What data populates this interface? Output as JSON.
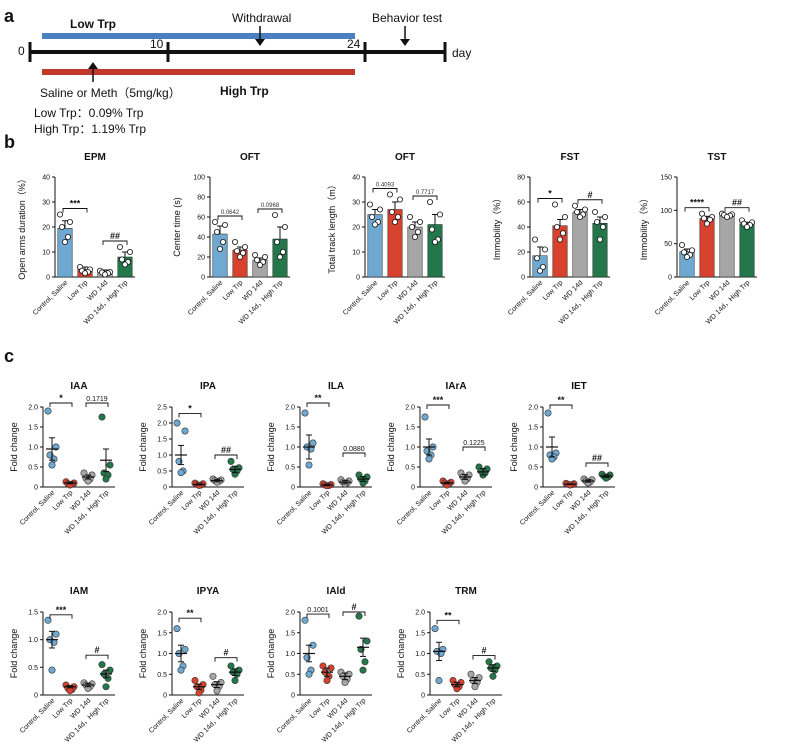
{
  "panel_labels": {
    "a": "a",
    "b": "b",
    "c": "c"
  },
  "colors": {
    "saline": "#6fa8d0",
    "low_trp": "#d9412f",
    "wd": "#a6a6a6",
    "high_trp": "#23774a",
    "low_bar": "#4a7fc1",
    "high_bar": "#c0392b",
    "low_text": "#d03030",
    "high_text": "#1e7a3c"
  },
  "timeline": {
    "low_bar_label": "Low Trp",
    "high_bar_label": "High Trp",
    "tick_labels": [
      "0",
      "10",
      "24"
    ],
    "unit": "day",
    "withdrawal": "Withdrawal",
    "behavior": "Behavior test",
    "treatment": "Saline or Meth（5mg/kg）",
    "low_dose": "Low Trp：0.09% Trp",
    "high_dose": "High Trp：1.19% Trp"
  },
  "chart_data": [
    {
      "id": "epm",
      "type": "bar",
      "title": "EPM",
      "ylabel": "Open arms duration（%）",
      "categories": [
        "Control, Saline",
        "Low Trp",
        "WD 14d",
        "WD 14d，High Trp"
      ],
      "values": [
        19.5,
        3,
        2,
        8
      ],
      "errors": [
        3,
        1,
        0.8,
        2
      ],
      "ylim": [
        0,
        40
      ],
      "ticks": [
        0,
        10,
        20,
        30,
        40
      ],
      "points": [
        [
          25,
          22,
          20,
          16,
          14
        ],
        [
          4,
          3,
          2.5,
          2,
          1.5
        ],
        [
          2.5,
          2,
          1.8,
          1.5,
          1
        ],
        [
          12,
          10,
          7,
          6,
          5
        ]
      ],
      "sig": [
        {
          "from": 0,
          "to": 1,
          "label": "***"
        },
        {
          "from": 2,
          "to": 3,
          "label": "##"
        }
      ]
    },
    {
      "id": "oft_center",
      "type": "bar",
      "title": "OFT",
      "ylabel": "Center time (s)",
      "categories": [
        "Control, Saline",
        "Low Trp",
        "WD 14d",
        "WD 14d，High Trp"
      ],
      "values": [
        43,
        27,
        17,
        38
      ],
      "errors": [
        8,
        3,
        2,
        12
      ],
      "ylim": [
        0,
        100
      ],
      "ticks": [
        0,
        20,
        40,
        60,
        80,
        100
      ],
      "points": [
        [
          55,
          52,
          45,
          35,
          28
        ],
        [
          35,
          30,
          26,
          24,
          20
        ],
        [
          22,
          20,
          17,
          15,
          12
        ],
        [
          62,
          50,
          35,
          25,
          20
        ]
      ],
      "sig": [
        {
          "from": 0,
          "to": 1,
          "label": "0.0642"
        },
        {
          "from": 2,
          "to": 3,
          "label": "0.0968"
        }
      ]
    },
    {
      "id": "oft_track",
      "type": "bar",
      "title": "OFT",
      "ylabel": "Total track length（m）",
      "categories": [
        "Control, Saline",
        "Low Trp",
        "WD 14d",
        "WD 14d，High Trp"
      ],
      "values": [
        25,
        27,
        20,
        21
      ],
      "errors": [
        2,
        3,
        2,
        4
      ],
      "ylim": [
        0,
        40
      ],
      "ticks": [
        0,
        10,
        20,
        30,
        40
      ],
      "points": [
        [
          29,
          27,
          24,
          22,
          21
        ],
        [
          33,
          31,
          26,
          24,
          22
        ],
        [
          24,
          22,
          20,
          18,
          16
        ],
        [
          30,
          25,
          19,
          15,
          14
        ]
      ],
      "sig": [
        {
          "from": 0,
          "to": 1,
          "label": "0.4093"
        },
        {
          "from": 2,
          "to": 3,
          "label": "0.7717"
        }
      ]
    },
    {
      "id": "fst",
      "type": "bar",
      "title": "FST",
      "ylabel": "Immobility（%）",
      "categories": [
        "Control, Saline",
        "Low Trp",
        "WD 14d",
        "WD 14d，High Trp"
      ],
      "values": [
        17,
        41,
        52,
        43
      ],
      "errors": [
        7,
        5,
        2,
        5
      ],
      "ylim": [
        0,
        80
      ],
      "ticks": [
        0,
        20,
        40,
        60,
        80
      ],
      "points": [
        [
          30,
          22,
          15,
          8,
          5
        ],
        [
          58,
          48,
          40,
          35,
          30
        ],
        [
          57,
          54,
          52,
          50,
          48
        ],
        [
          52,
          48,
          44,
          40,
          30
        ]
      ],
      "sig": [
        {
          "from": 0,
          "to": 1,
          "label": "*"
        },
        {
          "from": 2,
          "to": 3,
          "label": "#"
        }
      ]
    },
    {
      "id": "tst",
      "type": "bar",
      "title": "TST",
      "ylabel": "Immobility（%）",
      "categories": [
        "Control, Saline",
        "Low Trp",
        "WD 14d",
        "WD 14d，High Trp"
      ],
      "values": [
        38,
        88,
        93,
        80
      ],
      "errors": [
        4,
        3,
        1,
        2
      ],
      "ylim": [
        0,
        150
      ],
      "ticks": [
        0,
        50,
        100,
        150
      ],
      "points": [
        [
          48,
          40,
          37,
          33,
          30
        ],
        [
          95,
          90,
          88,
          86,
          80
        ],
        [
          95,
          94,
          93,
          92,
          90
        ],
        [
          85,
          82,
          80,
          78,
          75
        ]
      ],
      "sig": [
        {
          "from": 0,
          "to": 1,
          "label": "****"
        },
        {
          "from": 2,
          "to": 3,
          "label": "##"
        }
      ]
    },
    {
      "id": "iaa",
      "type": "scatter",
      "title": "IAA",
      "ylabel": "Fold change",
      "categories": [
        "Control, Saline",
        "Low Trp",
        "WD 14d",
        "WD 14d，High Trp"
      ],
      "means": [
        0.95,
        0.1,
        0.25,
        0.67
      ],
      "errors": [
        0.28,
        0.02,
        0.05,
        0.28
      ],
      "ylim": [
        0,
        2.0
      ],
      "ticks": [
        0,
        0.5,
        1.0,
        1.5,
        2.0
      ],
      "points": [
        [
          1.9,
          1.0,
          0.8,
          0.7,
          0.55
        ],
        [
          0.13,
          0.1,
          0.08,
          0.07,
          0.05
        ],
        [
          0.35,
          0.3,
          0.22,
          0.2,
          0.15
        ],
        [
          1.75,
          0.55,
          0.35,
          0.3,
          0.2
        ]
      ],
      "sig": [
        {
          "from": 0,
          "to": 1,
          "label": "*",
          "y": 2.1
        },
        {
          "from": 2,
          "to": 3,
          "label": "0.1719",
          "y": 2.1
        }
      ]
    },
    {
      "id": "ipa",
      "type": "scatter",
      "title": "IPA",
      "ylabel": "Fold change",
      "categories": [
        "Control, Saline",
        "Low Trp",
        "WD 14d",
        "WD 14d，High Trp"
      ],
      "means": [
        1.0,
        0.08,
        0.2,
        0.55
      ],
      "errors": [
        0.3,
        0.02,
        0.04,
        0.1
      ],
      "ylim": [
        0,
        2.5
      ],
      "ticks": [
        0,
        0.5,
        1.0,
        1.5,
        2.0,
        2.5
      ],
      "points": [
        [
          2.0,
          1.75,
          0.8,
          0.5,
          0.45
        ],
        [
          0.12,
          0.1,
          0.08,
          0.06,
          0.05
        ],
        [
          0.25,
          0.22,
          0.2,
          0.18,
          0.15
        ],
        [
          0.8,
          0.6,
          0.55,
          0.5,
          0.4
        ]
      ],
      "sig": [
        {
          "from": 0,
          "to": 1,
          "label": "*",
          "y": 2.3
        },
        {
          "from": 2,
          "to": 3,
          "label": "##",
          "y": 1.0
        }
      ]
    },
    {
      "id": "ila",
      "type": "scatter",
      "title": "ILA",
      "ylabel": "Fold change",
      "categories": [
        "Control, Saline",
        "Low Trp",
        "WD 14d",
        "WD 14d，High Trp"
      ],
      "means": [
        1.0,
        0.05,
        0.12,
        0.2
      ],
      "errors": [
        0.3,
        0.02,
        0.04,
        0.06
      ],
      "ylim": [
        0,
        2.0
      ],
      "ticks": [
        0,
        0.5,
        1.0,
        1.5,
        2.0
      ],
      "points": [
        [
          1.85,
          1.1,
          1.0,
          0.95,
          0.55
        ],
        [
          0.08,
          0.06,
          0.05,
          0.04,
          0.03
        ],
        [
          0.18,
          0.15,
          0.12,
          0.1,
          0.08
        ],
        [
          0.3,
          0.25,
          0.2,
          0.15,
          0.1
        ]
      ],
      "sig": [
        {
          "from": 0,
          "to": 1,
          "label": "**",
          "y": 2.1
        },
        {
          "from": 2,
          "to": 3,
          "label": "0.0880",
          "y": 0.85
        }
      ]
    },
    {
      "id": "iara",
      "type": "scatter",
      "title": "IArA",
      "ylabel": "Fold change",
      "categories": [
        "Control, Saline",
        "Low Trp",
        "WD 14d",
        "WD 14d，High Trp"
      ],
      "means": [
        1.0,
        0.1,
        0.25,
        0.38
      ],
      "errors": [
        0.2,
        0.02,
        0.06,
        0.08
      ],
      "ylim": [
        0,
        2.0
      ],
      "ticks": [
        0,
        0.5,
        1.0,
        1.5,
        2.0
      ],
      "points": [
        [
          1.75,
          1.0,
          0.9,
          0.8,
          0.7
        ],
        [
          0.15,
          0.12,
          0.1,
          0.08,
          0.05
        ],
        [
          0.35,
          0.3,
          0.25,
          0.2,
          0.15
        ],
        [
          0.5,
          0.45,
          0.4,
          0.35,
          0.3
        ]
      ],
      "sig": [
        {
          "from": 0,
          "to": 1,
          "label": "***",
          "y": 2.05
        },
        {
          "from": 2,
          "to": 3,
          "label": "0.1225",
          "y": 1.0
        }
      ]
    },
    {
      "id": "iet",
      "type": "scatter",
      "title": "IET",
      "ylabel": "Fold change",
      "categories": [
        "Control, Saline",
        "Low Trp",
        "WD 14d",
        "WD 14d，High Trp"
      ],
      "means": [
        1.0,
        0.07,
        0.15,
        0.27
      ],
      "errors": [
        0.25,
        0.01,
        0.03,
        0.03
      ],
      "ylim": [
        0,
        2.0
      ],
      "ticks": [
        0,
        0.5,
        1.0,
        1.5,
        2.0
      ],
      "points": [
        [
          1.85,
          0.85,
          0.8,
          0.75,
          0.7
        ],
        [
          0.09,
          0.08,
          0.07,
          0.06,
          0.05
        ],
        [
          0.2,
          0.18,
          0.15,
          0.12,
          0.1
        ],
        [
          0.32,
          0.3,
          0.27,
          0.25,
          0.22
        ]
      ],
      "sig": [
        {
          "from": 0,
          "to": 1,
          "label": "**",
          "y": 2.05
        },
        {
          "from": 2,
          "to": 3,
          "label": "##",
          "y": 0.6
        }
      ]
    },
    {
      "id": "iam",
      "type": "scatter",
      "title": "IAM",
      "ylabel": "Fold change",
      "categories": [
        "Control, Saline",
        "Low Trp",
        "WD 14d",
        "WD 14d，High Trp"
      ],
      "means": [
        1.0,
        0.15,
        0.18,
        0.38
      ],
      "errors": [
        0.15,
        0.02,
        0.03,
        0.07
      ],
      "ylim": [
        0,
        1.5
      ],
      "ticks": [
        0,
        0.5,
        1.0,
        1.5
      ],
      "points": [
        [
          1.35,
          1.1,
          1.0,
          0.95,
          0.45
        ],
        [
          0.18,
          0.15,
          0.12,
          0.1,
          0.08
        ],
        [
          0.22,
          0.2,
          0.18,
          0.15,
          0.12
        ],
        [
          0.55,
          0.45,
          0.38,
          0.3,
          0.15
        ]
      ],
      "sig": [
        {
          "from": 0,
          "to": 1,
          "label": "***",
          "y": 1.45
        },
        {
          "from": 2,
          "to": 3,
          "label": "#",
          "y": 0.72
        }
      ]
    },
    {
      "id": "ipya",
      "type": "scatter",
      "title": "IPYA",
      "ylabel": "Fold change",
      "categories": [
        "Control, Saline",
        "Low Trp",
        "WD 14d",
        "WD 14d，High Trp"
      ],
      "means": [
        1.0,
        0.2,
        0.25,
        0.55
      ],
      "errors": [
        0.2,
        0.06,
        0.07,
        0.08
      ],
      "ylim": [
        0,
        2.0
      ],
      "ticks": [
        0,
        0.5,
        1.0,
        1.5,
        2.0
      ],
      "points": [
        [
          1.6,
          1.1,
          1.0,
          0.7,
          0.6
        ],
        [
          0.35,
          0.25,
          0.2,
          0.12,
          0.05
        ],
        [
          0.45,
          0.3,
          0.25,
          0.2,
          0.1
        ],
        [
          0.7,
          0.6,
          0.55,
          0.5,
          0.35
        ]
      ],
      "sig": [
        {
          "from": 0,
          "to": 1,
          "label": "**",
          "y": 1.85
        },
        {
          "from": 2,
          "to": 3,
          "label": "#",
          "y": 0.9
        }
      ]
    },
    {
      "id": "iald",
      "type": "scatter",
      "title": "IAld",
      "ylabel": "Fold change",
      "categories": [
        "Control, Saline",
        "Low Trp",
        "WD 14d",
        "WD 14d，High Trp"
      ],
      "means": [
        1.0,
        0.55,
        0.45,
        1.15
      ],
      "errors": [
        0.2,
        0.1,
        0.08,
        0.22
      ],
      "ylim": [
        0,
        2.0
      ],
      "ticks": [
        0,
        0.5,
        1.0,
        1.5,
        2.0
      ],
      "points": [
        [
          1.8,
          1.2,
          0.9,
          0.6,
          0.5
        ],
        [
          0.7,
          0.65,
          0.55,
          0.45,
          0.35
        ],
        [
          0.55,
          0.5,
          0.45,
          0.38,
          0.3
        ],
        [
          1.9,
          1.3,
          1.1,
          0.8,
          0.6
        ]
      ],
      "sig": [
        {
          "from": 0,
          "to": 1,
          "label": "0.1001",
          "y": 1.95
        },
        {
          "from": 2,
          "to": 3,
          "label": "#",
          "y": 2.0
        }
      ]
    },
    {
      "id": "trm",
      "type": "scatter",
      "title": "TRM",
      "ylabel": "Fold change",
      "categories": [
        "Control, Saline",
        "Low Trp",
        "WD 14d",
        "WD 14d，High Trp"
      ],
      "means": [
        1.05,
        0.25,
        0.35,
        0.65
      ],
      "errors": [
        0.22,
        0.05,
        0.07,
        0.08
      ],
      "ylim": [
        0,
        2.0
      ],
      "ticks": [
        0,
        0.5,
        1.0,
        1.5,
        2.0
      ],
      "points": [
        [
          1.6,
          1.1,
          1.05,
          1.0,
          0.35
        ],
        [
          0.35,
          0.3,
          0.25,
          0.2,
          0.15
        ],
        [
          0.5,
          0.42,
          0.35,
          0.3,
          0.2
        ],
        [
          0.8,
          0.7,
          0.65,
          0.6,
          0.45
        ]
      ],
      "sig": [
        {
          "from": 0,
          "to": 1,
          "label": "**",
          "y": 1.8
        },
        {
          "from": 2,
          "to": 3,
          "label": "#",
          "y": 0.95
        }
      ]
    }
  ]
}
